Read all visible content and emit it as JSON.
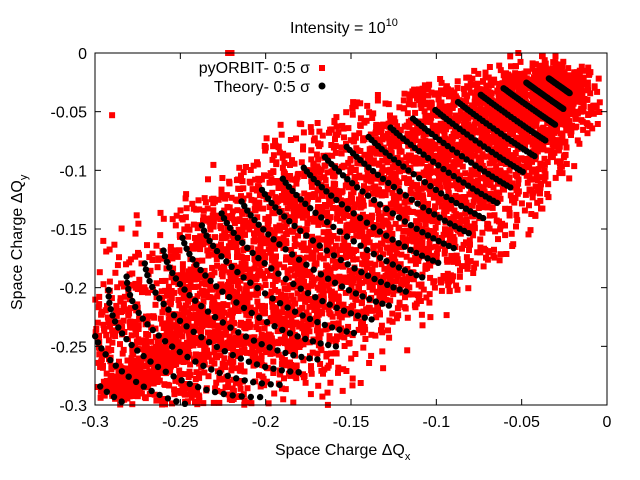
{
  "chart_data": {
    "type": "scatter",
    "title": "Intensity = 10",
    "title_superscript": "10",
    "xlabel": "Space Charge ΔQ",
    "xlabel_subscript": "x",
    "ylabel": "Space Charge ΔQ",
    "ylabel_subscript": "y",
    "xlim": [
      -0.3,
      0
    ],
    "ylim": [
      -0.3,
      0
    ],
    "xticks": [
      -0.3,
      -0.25,
      -0.2,
      -0.15,
      -0.1,
      -0.05,
      0
    ],
    "xtick_labels": [
      "-0.3",
      "-0.25",
      "-0.2",
      "-0.15",
      "-0.1",
      "-0.05",
      "0"
    ],
    "yticks": [
      -0.3,
      -0.25,
      -0.2,
      -0.15,
      -0.1,
      -0.05,
      0
    ],
    "ytick_labels": [
      "-0.3",
      "-0.25",
      "-0.2",
      "-0.15",
      "-0.1",
      "-0.05",
      "0"
    ],
    "grid": false,
    "legend_position": "top-left",
    "series": [
      {
        "name": "pyORBIT- 0:5 σ",
        "color": "#ff0000",
        "marker": "square",
        "description": "dense cloud between the diagonal lines from (-0.29,-0.29) to (-0.02,-0.02)",
        "outliers": [
          {
            "x": -0.222,
            "y": 0.0
          },
          {
            "x": -0.22,
            "y": 0.0
          },
          {
            "x": -0.052,
            "y": 0.0
          },
          {
            "x": -0.29,
            "y": -0.053
          },
          {
            "x": -0.283,
            "y": -0.27
          },
          {
            "x": -0.28,
            "y": -0.222
          }
        ]
      },
      {
        "name": "Theory- 0:5 σ",
        "color": "#000000",
        "marker": "circle",
        "description": "fan-shaped grid of points converging at (-0.021,-0.021) and narrowing to (-0.29,-0.29)"
      }
    ]
  }
}
